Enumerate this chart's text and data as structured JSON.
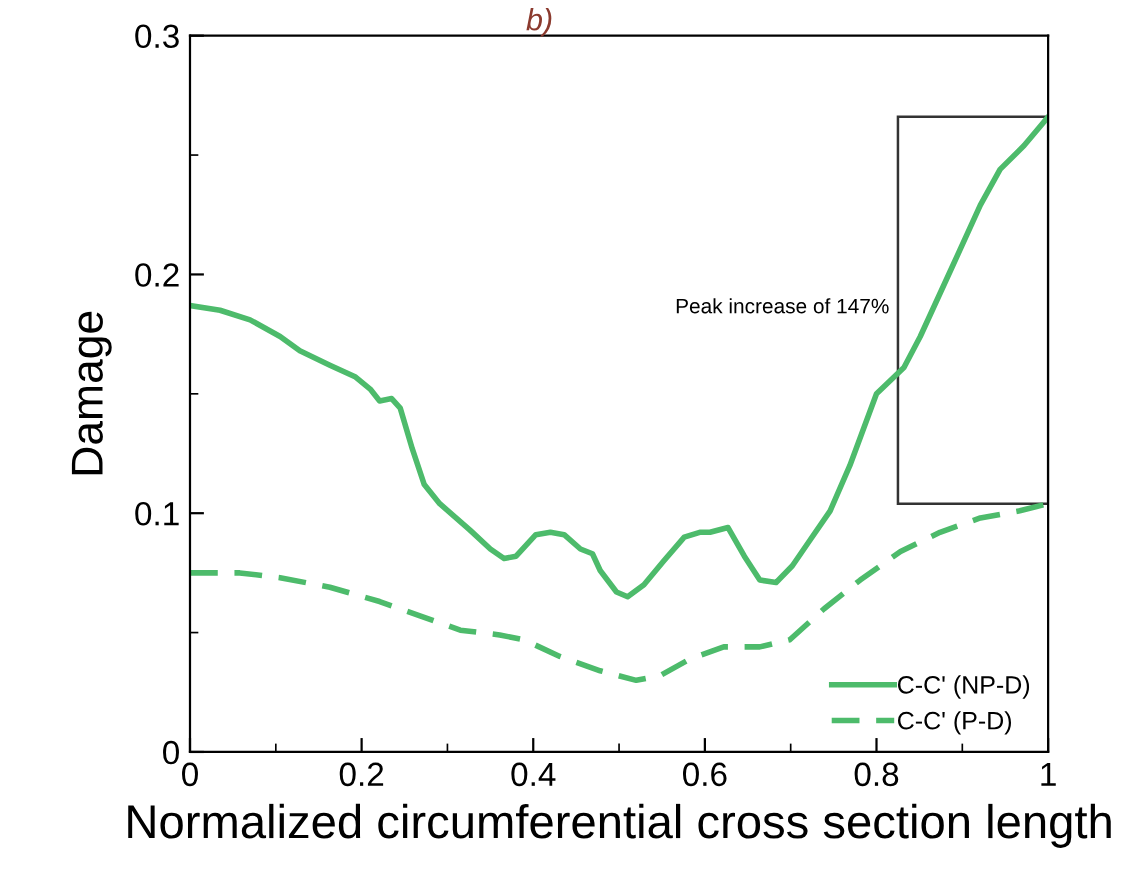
{
  "chart_data": {
    "type": "line",
    "xlabel": "Normalized circumferential cross section length",
    "ylabel": "Damage",
    "xlim": [
      0,
      1
    ],
    "ylim": [
      0,
      0.3
    ],
    "xticks": [
      0,
      0.2,
      0.4,
      0.6,
      0.8,
      1
    ],
    "yticks": [
      0,
      0.1,
      0.2,
      0.3
    ],
    "grid": false,
    "legend": "bottom right",
    "marker": "none",
    "annotations": [
      "b)",
      "Peak increase of 147%"
    ],
    "series": [
      {
        "name": "C-C' (NP-D)",
        "color": "#4dbb6b",
        "line_style": "solid",
        "x": [
          0,
          0.035,
          0.07,
          0.105,
          0.128,
          0.163,
          0.193,
          0.21,
          0.221,
          0.235,
          0.245,
          0.259,
          0.273,
          0.291,
          0.326,
          0.35,
          0.366,
          0.38,
          0.403,
          0.42,
          0.436,
          0.455,
          0.469,
          0.478,
          0.497,
          0.51,
          0.529,
          0.552,
          0.576,
          0.594,
          0.606,
          0.627,
          0.646,
          0.664,
          0.683,
          0.702,
          0.723,
          0.746,
          0.769,
          0.8,
          0.832,
          0.851,
          0.888,
          0.921,
          0.944,
          0.972,
          1
        ],
        "values": [
          0.187,
          0.185,
          0.181,
          0.174,
          0.168,
          0.162,
          0.157,
          0.152,
          0.147,
          0.148,
          0.144,
          0.127,
          0.112,
          0.104,
          0.093,
          0.085,
          0.081,
          0.082,
          0.091,
          0.092,
          0.091,
          0.085,
          0.083,
          0.076,
          0.067,
          0.065,
          0.07,
          0.08,
          0.09,
          0.092,
          0.092,
          0.094,
          0.082,
          0.072,
          0.071,
          0.078,
          0.089,
          0.101,
          0.12,
          0.15,
          0.161,
          0.174,
          0.203,
          0.229,
          0.244,
          0.254,
          0.266
        ]
      },
      {
        "name": "C-C' (P-D)",
        "color": "#4dbb6b",
        "line_style": "dashed",
        "x": [
          0,
          0.058,
          0.105,
          0.163,
          0.221,
          0.268,
          0.315,
          0.361,
          0.389,
          0.431,
          0.478,
          0.52,
          0.548,
          0.583,
          0.622,
          0.664,
          0.699,
          0.739,
          0.781,
          0.828,
          0.874,
          0.921,
          0.967,
          1
        ],
        "values": [
          0.075,
          0.075,
          0.073,
          0.069,
          0.063,
          0.057,
          0.051,
          0.049,
          0.047,
          0.04,
          0.034,
          0.03,
          0.032,
          0.039,
          0.044,
          0.044,
          0.047,
          0.06,
          0.072,
          0.084,
          0.092,
          0.098,
          0.101,
          0.104
        ]
      }
    ]
  }
}
